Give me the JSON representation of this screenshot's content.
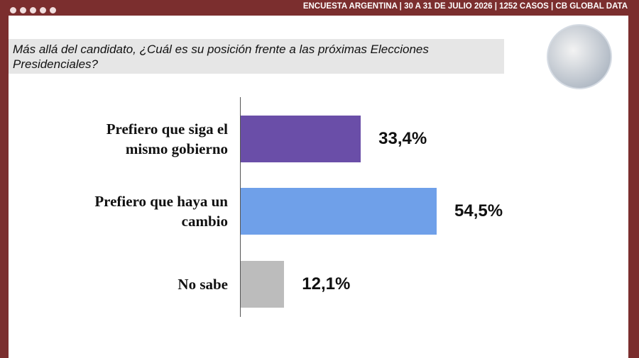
{
  "header": "ENCUESTA ARGENTINA | 30 A 31 DE JULIO 2026 | 1252 CASOS | CB GLOBAL DATA",
  "chart_data": {
    "type": "bar",
    "orientation": "horizontal",
    "title": "Más allá del candidato, ¿Cuál es su posición frente a las próximas Elecciones Presidenciales?",
    "categories": [
      "Prefiero que siga el mismo gobierno",
      "Prefiero que haya un cambio",
      "No sabe"
    ],
    "values": [
      33.4,
      54.5,
      12.1
    ],
    "value_labels": [
      "33,4%",
      "54,5%",
      "12,1%"
    ],
    "colors": [
      "#6a4ea8",
      "#6fa0e9",
      "#bcbcbc"
    ]
  }
}
